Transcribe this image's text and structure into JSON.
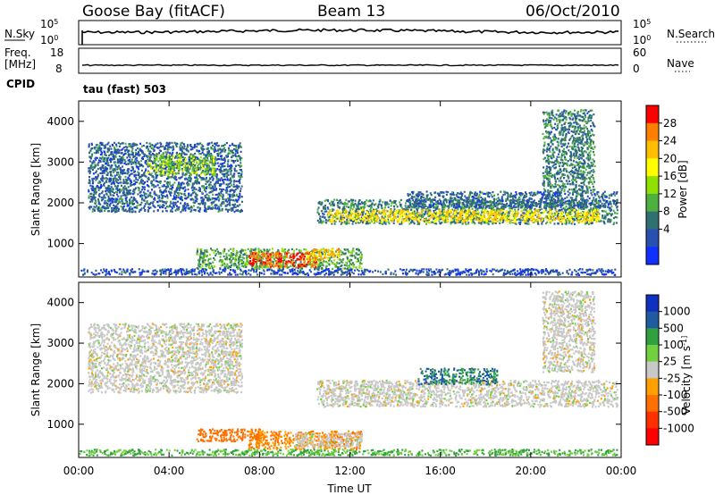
{
  "header": {
    "station": "Goose Bay (fitACF)",
    "beam": "Beam 13",
    "date": "06/Oct/2010"
  },
  "nsky_panel": {
    "left_label": "N.Sky",
    "right_label": "N.Search",
    "left_ticks": [
      "10^5",
      "10^0"
    ],
    "right_ticks": [
      "10^5",
      "10^0"
    ]
  },
  "freq_panel": {
    "left_label_1": "Freq.",
    "left_label_2": "[MHz]",
    "left_ticks": [
      "18",
      "8"
    ],
    "right_ticks": [
      "60",
      "0"
    ],
    "right_label": "Nave",
    "cpid_label": "CPID",
    "cpid_value": "tau (fast) 503"
  },
  "chart_data": [
    {
      "type": "heatmap",
      "name": "Power",
      "xlabel": "",
      "ylabel": "Slant Range [km]",
      "y_ticks": [
        "1000",
        "2000",
        "3000",
        "4000"
      ],
      "ylim": [
        180,
        4500
      ],
      "xlim": [
        "00:00",
        "24:00"
      ],
      "colorbar_label": "Power [dB]",
      "colorbar_ticks": [
        "28",
        "24",
        "20",
        "16",
        "12",
        "8",
        "4"
      ],
      "colorbar_colors": [
        "#ff0000",
        "#ff7f00",
        "#ffbf00",
        "#ffff00",
        "#90e000",
        "#4db040",
        "#307070",
        "#2850b0",
        "#1030ff"
      ],
      "regions": [
        {
          "t0": 0.4,
          "t1": 7.2,
          "r0": 1800,
          "r1": 3500,
          "level": 8
        },
        {
          "t0": 3.0,
          "t1": 6.0,
          "r0": 2700,
          "r1": 3200,
          "level": 14
        },
        {
          "t0": 5.2,
          "t1": 12.5,
          "r0": 400,
          "r1": 900,
          "level": 12
        },
        {
          "t0": 7.5,
          "t1": 10.5,
          "r0": 450,
          "r1": 800,
          "level": 28
        },
        {
          "t0": 10.0,
          "t1": 11.5,
          "r0": 600,
          "r1": 900,
          "level": 22
        },
        {
          "t0": 10.5,
          "t1": 23.8,
          "r0": 1500,
          "r1": 2100,
          "level": 10
        },
        {
          "t0": 11.0,
          "t1": 23.0,
          "r0": 1550,
          "r1": 1850,
          "level": 20
        },
        {
          "t0": 14.5,
          "t1": 23.8,
          "r0": 1900,
          "r1": 2300,
          "level": 8
        },
        {
          "t0": 20.5,
          "t1": 22.8,
          "r0": 2300,
          "r1": 4300,
          "level": 10
        },
        {
          "t0": 0.0,
          "t1": 23.8,
          "r0": 250,
          "r1": 400,
          "level": 6
        }
      ]
    },
    {
      "type": "heatmap",
      "name": "Velocity",
      "xlabel": "Time UT",
      "ylabel": "Slant Range [km]",
      "x_ticks": [
        "00:00",
        "04:00",
        "08:00",
        "12:00",
        "16:00",
        "20:00",
        "00:00"
      ],
      "y_ticks": [
        "1000",
        "2000",
        "3000",
        "4000"
      ],
      "ylim": [
        180,
        4500
      ],
      "xlim": [
        "00:00",
        "24:00"
      ],
      "colorbar_label": "Velocity [m s^-1]",
      "colorbar_ticks": [
        "1000",
        "500",
        "100",
        "25",
        "-25",
        "-100",
        "-500",
        "-1000"
      ],
      "colorbar_colors": [
        "#1030c0",
        "#205aa0",
        "#30a040",
        "#70d040",
        "#c8c8c8",
        "#ffa000",
        "#ff7000",
        "#ff3000",
        "#ff0000"
      ],
      "regions": [
        {
          "t0": 0.4,
          "t1": 7.2,
          "r0": 1800,
          "r1": 3500,
          "level": 0
        },
        {
          "t0": 5.2,
          "t1": 8.0,
          "r0": 600,
          "r1": 900,
          "level": -150
        },
        {
          "t0": 7.5,
          "t1": 12.5,
          "r0": 400,
          "r1": 850,
          "level": -100
        },
        {
          "t0": 9.5,
          "t1": 12.5,
          "r0": 450,
          "r1": 800,
          "level": 0
        },
        {
          "t0": 10.5,
          "t1": 23.8,
          "r0": 1450,
          "r1": 2100,
          "level": 0
        },
        {
          "t0": 15.0,
          "t1": 18.5,
          "r0": 2000,
          "r1": 2400,
          "level": 300
        },
        {
          "t0": 20.5,
          "t1": 22.8,
          "r0": 2300,
          "r1": 4300,
          "level": 0
        },
        {
          "t0": 0.0,
          "t1": 23.8,
          "r0": 250,
          "r1": 400,
          "level": 60
        }
      ]
    }
  ]
}
